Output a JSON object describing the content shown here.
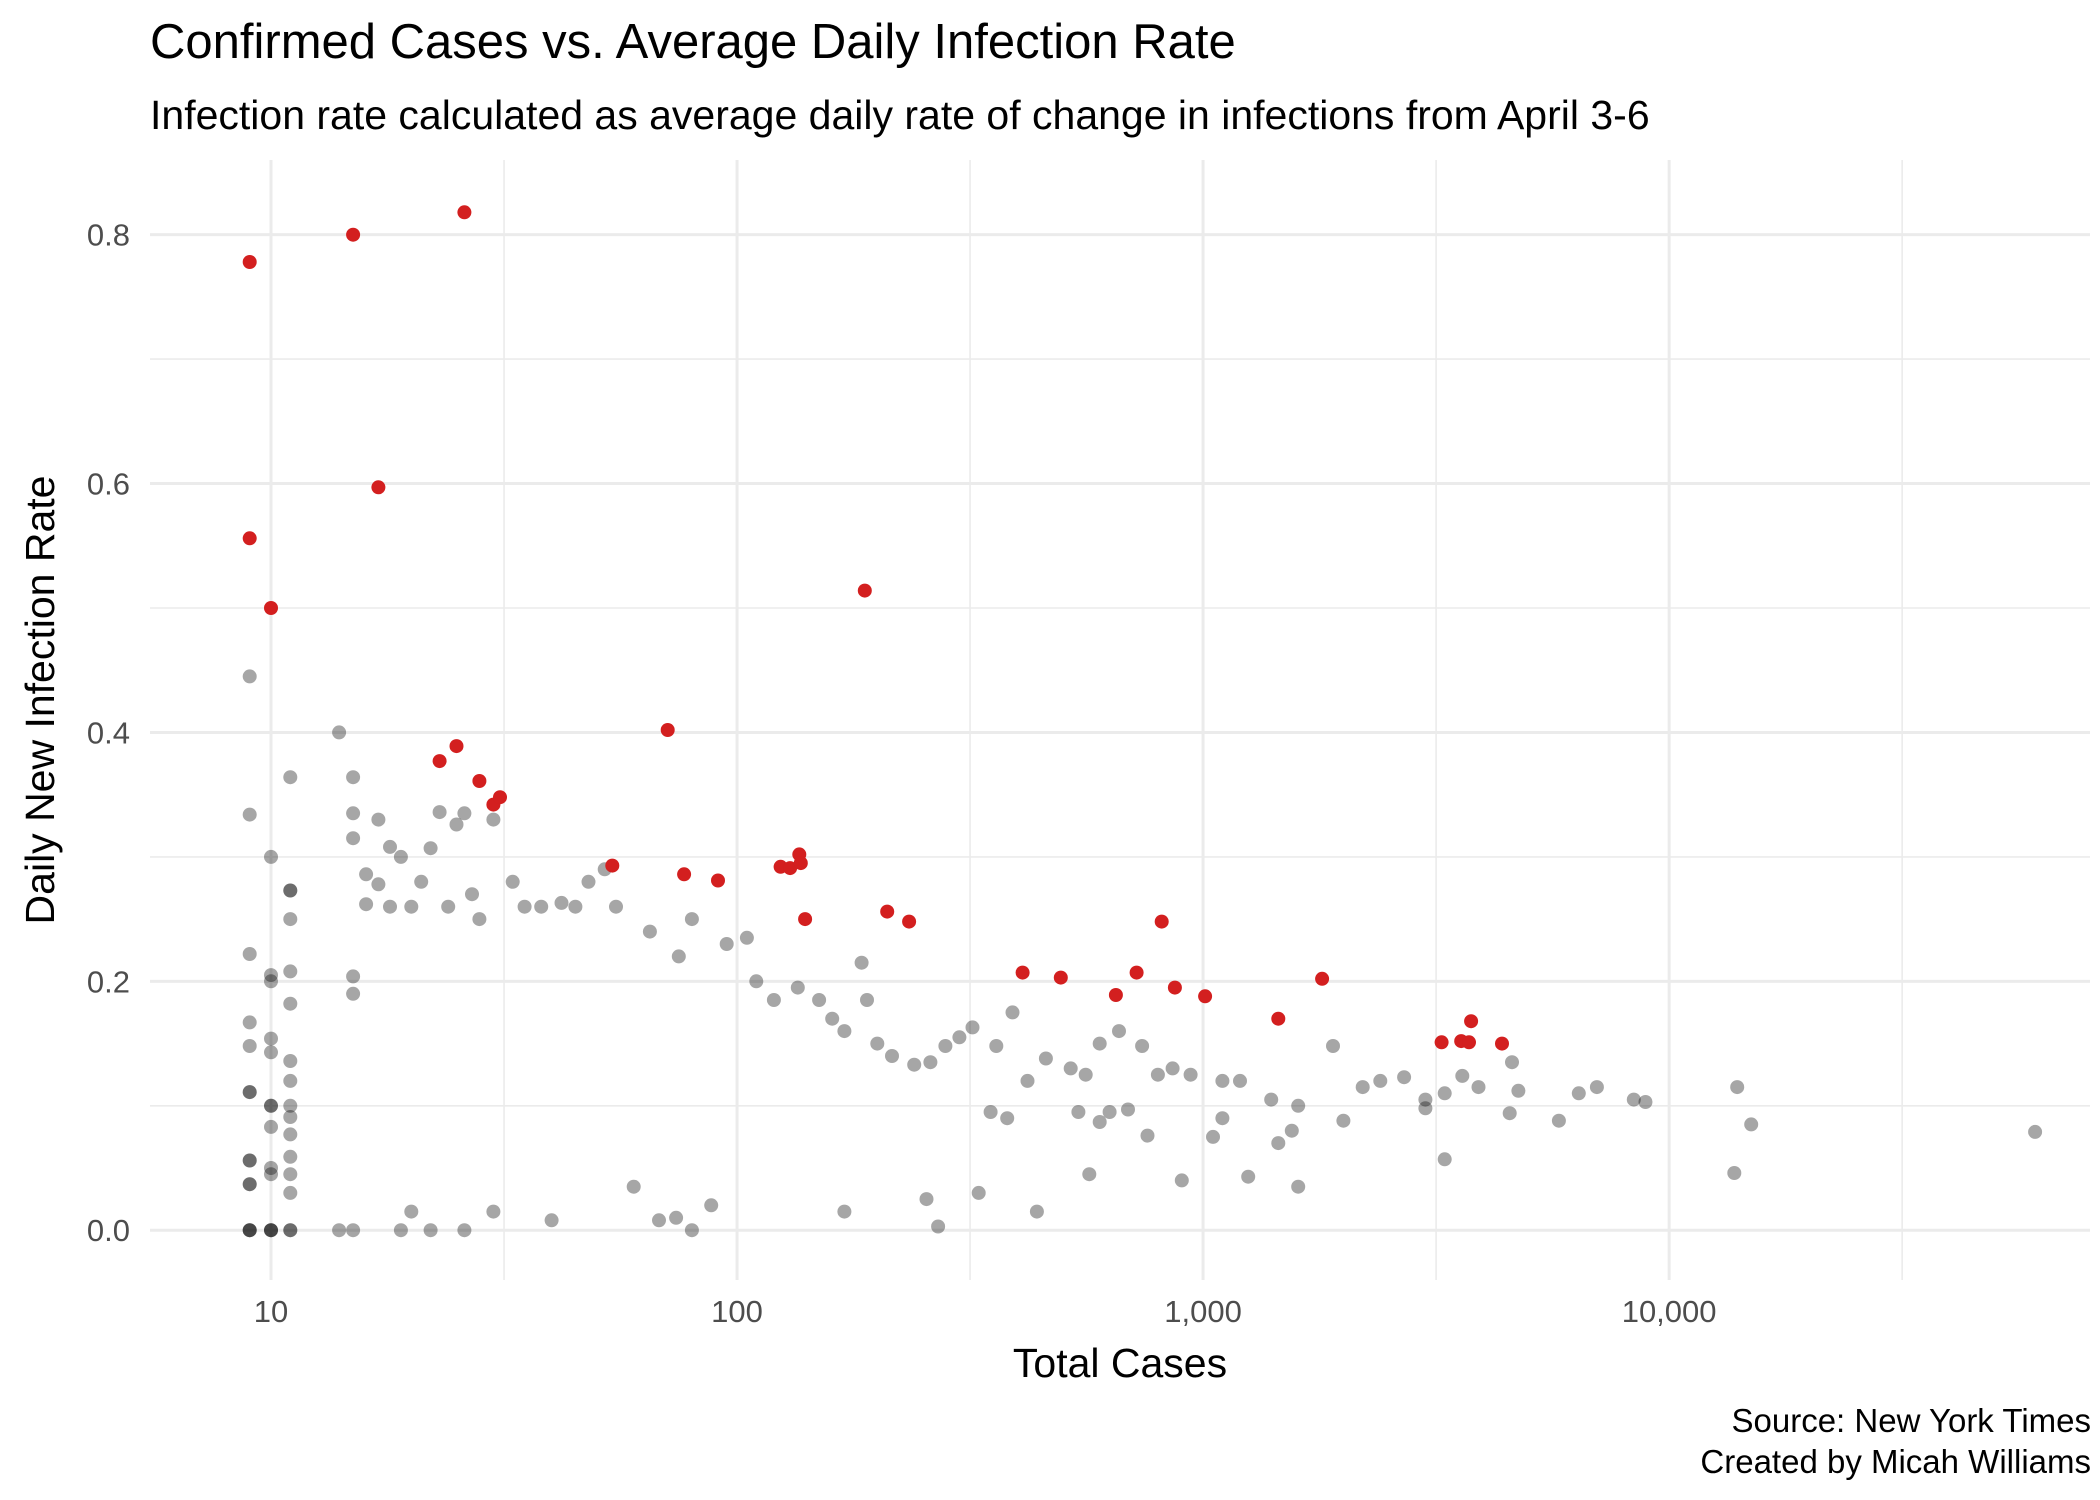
{
  "chart_data": {
    "type": "scatter",
    "title": "Confirmed Cases vs. Average Daily Infection Rate",
    "subtitle": "Infection rate calculated as average daily rate of change in infections from April 3-6",
    "xlabel": "Total Cases",
    "ylabel": "Daily New Infection Rate",
    "x_scale": "log10",
    "xlim": [
      5.5,
      80000
    ],
    "ylim": [
      -0.04,
      0.86
    ],
    "x_ticks": [
      10,
      100,
      1000,
      10000
    ],
    "x_tick_labels": [
      "10",
      "100",
      "1,000",
      "10,000"
    ],
    "y_ticks": [
      0.0,
      0.2,
      0.4,
      0.6,
      0.8
    ],
    "y_tick_labels": [
      "0.0",
      "0.2",
      "0.4",
      "0.6",
      "0.8"
    ],
    "grid": true,
    "caption": [
      "Source: New York Times",
      "Created by Micah Williams"
    ],
    "colors": {
      "base": "#000000",
      "highlight": "#d31f1f",
      "grid": "#ebebeb"
    },
    "series": [
      {
        "color": "#d31f1f",
        "points": [
          [
            9,
            0.778
          ],
          [
            15,
            0.8
          ],
          [
            26,
            0.818
          ],
          [
            9,
            0.556
          ],
          [
            17,
            0.597
          ],
          [
            10,
            0.5
          ],
          [
            23,
            0.377
          ],
          [
            25,
            0.389
          ],
          [
            28,
            0.361
          ],
          [
            30,
            0.342
          ],
          [
            31,
            0.348
          ],
          [
            54,
            0.293
          ],
          [
            71,
            0.402
          ],
          [
            77,
            0.286
          ],
          [
            91,
            0.281
          ],
          [
            124,
            0.292
          ],
          [
            130,
            0.291
          ],
          [
            136,
            0.302
          ],
          [
            137,
            0.295
          ],
          [
            140,
            0.25
          ],
          [
            188,
            0.514
          ],
          [
            210,
            0.256
          ],
          [
            234,
            0.248
          ],
          [
            410,
            0.207
          ],
          [
            495,
            0.203
          ],
          [
            650,
            0.189
          ],
          [
            720,
            0.207
          ],
          [
            815,
            0.248
          ],
          [
            870,
            0.195
          ],
          [
            1010,
            0.188
          ],
          [
            1450,
            0.17
          ],
          [
            1800,
            0.202
          ],
          [
            3250,
            0.151
          ],
          [
            3580,
            0.152
          ],
          [
            3720,
            0.151
          ],
          [
            3760,
            0.168
          ],
          [
            4380,
            0.15
          ]
        ]
      },
      {
        "color": "#000000",
        "points": [
          [
            9,
            0.445
          ],
          [
            9,
            0.334
          ],
          [
            9,
            0.222
          ],
          [
            9,
            0.167
          ],
          [
            9,
            0.148
          ],
          [
            9,
            0.111
          ],
          [
            9,
            0.111
          ],
          [
            9,
            0.056
          ],
          [
            9,
            0.056
          ],
          [
            9,
            0.037
          ],
          [
            9,
            0.037
          ],
          [
            9,
            0.0
          ],
          [
            9,
            0.0
          ],
          [
            9,
            0.0
          ],
          [
            10,
            0.3
          ],
          [
            10,
            0.205
          ],
          [
            10,
            0.2
          ],
          [
            10,
            0.154
          ],
          [
            10,
            0.143
          ],
          [
            10,
            0.1
          ],
          [
            10,
            0.1
          ],
          [
            10,
            0.083
          ],
          [
            10,
            0.05
          ],
          [
            10,
            0.045
          ],
          [
            10,
            0.0
          ],
          [
            10,
            0.0
          ],
          [
            10,
            0.0
          ],
          [
            11,
            0.364
          ],
          [
            11,
            0.273
          ],
          [
            11,
            0.273
          ],
          [
            11,
            0.25
          ],
          [
            11,
            0.208
          ],
          [
            11,
            0.182
          ],
          [
            11,
            0.136
          ],
          [
            11,
            0.12
          ],
          [
            11,
            0.1
          ],
          [
            11,
            0.091
          ],
          [
            11,
            0.077
          ],
          [
            11,
            0.059
          ],
          [
            11,
            0.045
          ],
          [
            11,
            0.03
          ],
          [
            11,
            0.0
          ],
          [
            11,
            0.0
          ],
          [
            14,
            0.4
          ],
          [
            15,
            0.364
          ],
          [
            15,
            0.335
          ],
          [
            15,
            0.315
          ],
          [
            16,
            0.262
          ],
          [
            15,
            0.204
          ],
          [
            15,
            0.19
          ],
          [
            17,
            0.33
          ],
          [
            18,
            0.308
          ],
          [
            16,
            0.286
          ],
          [
            17,
            0.278
          ],
          [
            18,
            0.26
          ],
          [
            19,
            0.3
          ],
          [
            20,
            0.26
          ],
          [
            22,
            0.307
          ],
          [
            21,
            0.28
          ],
          [
            23,
            0.336
          ],
          [
            25,
            0.326
          ],
          [
            26,
            0.335
          ],
          [
            27,
            0.27
          ],
          [
            24,
            0.26
          ],
          [
            28,
            0.25
          ],
          [
            30,
            0.33
          ],
          [
            33,
            0.28
          ],
          [
            35,
            0.26
          ],
          [
            38,
            0.26
          ],
          [
            42,
            0.263
          ],
          [
            45,
            0.26
          ],
          [
            48,
            0.28
          ],
          [
            52,
            0.29
          ],
          [
            55,
            0.26
          ],
          [
            65,
            0.24
          ],
          [
            75,
            0.22
          ],
          [
            80,
            0.25
          ],
          [
            95,
            0.23
          ],
          [
            105,
            0.235
          ],
          [
            110,
            0.2
          ],
          [
            120,
            0.185
          ],
          [
            135,
            0.195
          ],
          [
            150,
            0.185
          ],
          [
            160,
            0.17
          ],
          [
            170,
            0.16
          ],
          [
            185,
            0.215
          ],
          [
            190,
            0.185
          ],
          [
            200,
            0.15
          ],
          [
            215,
            0.14
          ],
          [
            240,
            0.133
          ],
          [
            260,
            0.135
          ],
          [
            280,
            0.148
          ],
          [
            300,
            0.155
          ],
          [
            320,
            0.163
          ],
          [
            360,
            0.148
          ],
          [
            390,
            0.175
          ],
          [
            420,
            0.12
          ],
          [
            460,
            0.138
          ],
          [
            520,
            0.13
          ],
          [
            560,
            0.125
          ],
          [
            600,
            0.15
          ],
          [
            660,
            0.16
          ],
          [
            740,
            0.148
          ],
          [
            800,
            0.125
          ],
          [
            860,
            0.13
          ],
          [
            940,
            0.125
          ],
          [
            1100,
            0.12
          ],
          [
            1200,
            0.12
          ],
          [
            1400,
            0.105
          ],
          [
            1600,
            0.1
          ],
          [
            1900,
            0.148
          ],
          [
            2200,
            0.115
          ],
          [
            2400,
            0.12
          ],
          [
            2700,
            0.123
          ],
          [
            3300,
            0.11
          ],
          [
            3600,
            0.124
          ],
          [
            3900,
            0.115
          ],
          [
            4600,
            0.135
          ],
          [
            4750,
            0.112
          ],
          [
            5800,
            0.088
          ],
          [
            6400,
            0.11
          ],
          [
            7000,
            0.115
          ],
          [
            8400,
            0.105
          ],
          [
            8900,
            0.103
          ],
          [
            14000,
            0.115
          ],
          [
            15000,
            0.085
          ],
          [
            13800,
            0.046
          ],
          [
            61000,
            0.079
          ],
          [
            3000,
            0.105
          ],
          [
            3000,
            0.098
          ],
          [
            3300,
            0.057
          ],
          [
            2000,
            0.088
          ],
          [
            1550,
            0.08
          ],
          [
            1250,
            0.043
          ],
          [
            1600,
            0.035
          ],
          [
            1450,
            0.07
          ],
          [
            4550,
            0.094
          ],
          [
            1100,
            0.09
          ],
          [
            1050,
            0.075
          ],
          [
            900,
            0.04
          ],
          [
            760,
            0.076
          ],
          [
            570,
            0.045
          ],
          [
            440,
            0.015
          ],
          [
            330,
            0.03
          ],
          [
            270,
            0.003
          ],
          [
            255,
            0.025
          ],
          [
            170,
            0.015
          ],
          [
            88,
            0.02
          ],
          [
            80,
            0.0
          ],
          [
            74,
            0.01
          ],
          [
            68,
            0.008
          ],
          [
            60,
            0.035
          ],
          [
            40,
            0.008
          ],
          [
            30,
            0.015
          ],
          [
            26,
            0.0
          ],
          [
            22,
            0.0
          ],
          [
            19,
            0.0
          ],
          [
            15,
            0.0
          ],
          [
            14,
            0.0
          ],
          [
            20,
            0.015
          ],
          [
            540,
            0.095
          ],
          [
            600,
            0.087
          ],
          [
            630,
            0.095
          ],
          [
            690,
            0.097
          ],
          [
            380,
            0.09
          ],
          [
            350,
            0.095
          ]
        ]
      }
    ]
  }
}
